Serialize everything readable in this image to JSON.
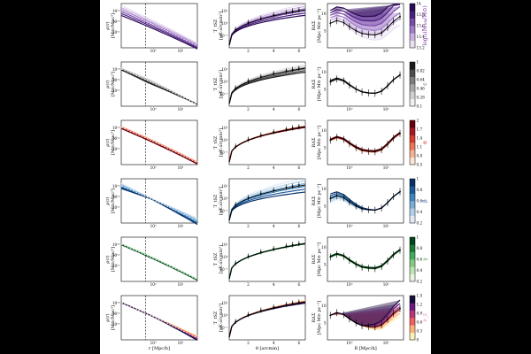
{
  "labels": {
    "rho_row": "ρ(r)",
    "rho_unit": "[M⊙/Mpc³]",
    "tsz_row": "T_tSZ",
    "tsz_unit": "[μK·arcmin²]",
    "ds_row": "RΔΣ",
    "ds_unit": "[Mpc M⊙ pc⁻²]",
    "x_r": "r [Mpc/h]",
    "x_theta": "θ [arcmin]",
    "x_R": "R [Mpc/h]"
  },
  "chart_data": {
    "type": "line",
    "layout": "6 rows × 3 columns grid",
    "columns": [
      {
        "name": "density",
        "ylabel": "ρ(r) [M⊙/Mpc³]",
        "xlabel": "r [Mpc/h]",
        "xscale": "log",
        "yscale": "log",
        "xticks": [
          "10⁰",
          "10¹"
        ],
        "yticks": [
          "10¹³",
          "10¹²",
          "10¹¹"
        ]
      },
      {
        "name": "tsz",
        "ylabel": "T_tSZ [μK·arcmin²]",
        "xlabel": "θ [arcmin]",
        "xscale": "linear",
        "yscale": "log",
        "xlim": [
          0.5,
          6.5
        ],
        "xticks": [
          2,
          4,
          6
        ],
        "yticks": [
          "10¹",
          "10⁰",
          "10⁻¹"
        ]
      },
      {
        "name": "lensing",
        "ylabel": "RΔΣ [Mpc M⊙ pc⁻²]",
        "xlabel": "R [Mpc/h]",
        "xscale": "log",
        "yscale": "linear",
        "xticks": [
          "10⁰",
          "10¹"
        ],
        "yticks": [
          5,
          10
        ]
      }
    ],
    "rows": [
      {
        "param": "log₁₀(M₁₀₀/M⊙)",
        "colorbar_ticks": [
          13.2,
          13.4,
          13.6,
          13.8,
          14.0
        ],
        "cmap": "purples",
        "label_color": "#7a2aa8"
      },
      {
        "param": "c",
        "colorbar_ticks": [
          0.1,
          0.28,
          0.46,
          0.64,
          0.82,
          1.0
        ],
        "cmap": "greys",
        "label_color": "#555555"
      },
      {
        "param": "α",
        "colorbar_ticks": [
          0.5,
          0.8,
          1.1,
          1.4,
          1.7,
          2.0
        ],
        "cmap": "reds",
        "label_color": "#d62728"
      },
      {
        "param": "β",
        "colorbar_ticks": [
          0.2,
          0.4,
          0.6,
          0.8,
          1.0
        ],
        "cmap": "blues",
        "label_color": "#1f4e99"
      },
      {
        "param": "γ",
        "colorbar_ticks": [
          0.2,
          0.4,
          0.6,
          0.8,
          1.0
        ],
        "cmap": "greens",
        "label_color": "#2ca02c"
      },
      {
        "param": "ν_z",
        "colorbar_ticks": [
          0.0,
          0.3,
          0.6,
          0.9,
          1.2,
          1.5
        ],
        "cmap": "magma",
        "label_color": "#e377c2"
      }
    ],
    "lensing_points": {
      "R": [
        0.3,
        0.45,
        0.7,
        1.0,
        1.5,
        2.2,
        3.3,
        5.0,
        7.5,
        11,
        16,
        24
      ],
      "RDS": [
        7.2,
        8.0,
        7.4,
        6.2,
        5.0,
        4.2,
        3.9,
        3.8,
        4.4,
        6.0,
        7.8,
        9.2
      ]
    },
    "tsz_points": {
      "theta": [
        1.0,
        2.0,
        3.0,
        4.0,
        5.0,
        5.5,
        6.0
      ],
      "T": [
        0.25,
        0.9,
        1.8,
        2.9,
        4.0,
        5.2,
        6.3
      ]
    }
  }
}
